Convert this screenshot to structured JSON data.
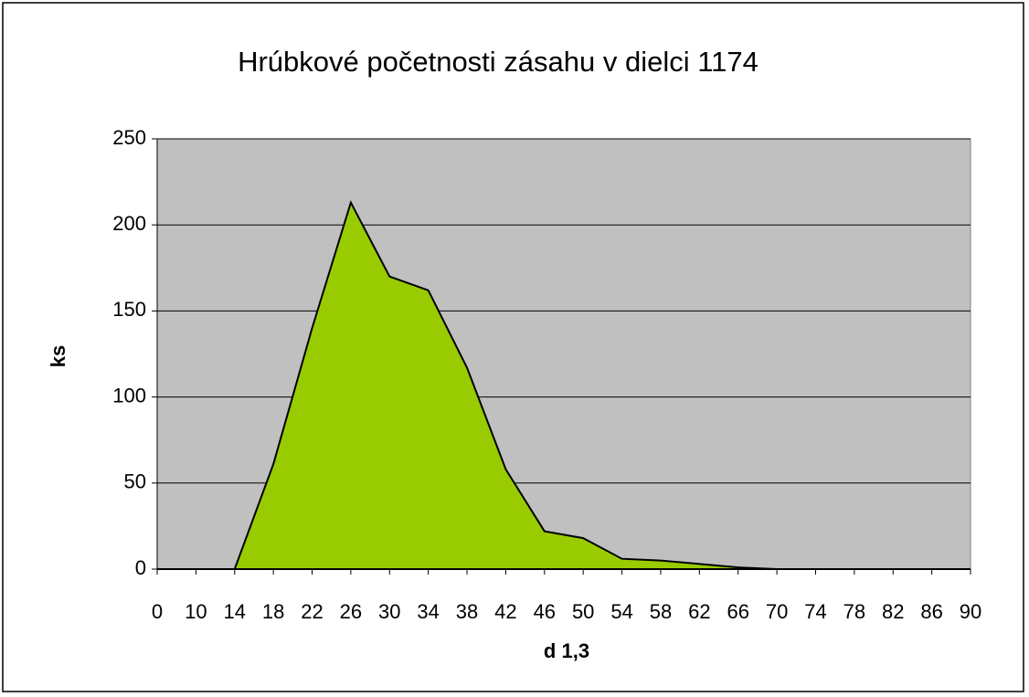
{
  "chart_data": {
    "type": "area",
    "title": "Hrúbkové početnosti zásahu v dielci 1174",
    "x_label": "d 1,3",
    "y_label": "ks",
    "categories": [
      0,
      10,
      14,
      18,
      22,
      26,
      30,
      34,
      38,
      42,
      46,
      50,
      54,
      58,
      62,
      66,
      70,
      74,
      78,
      82,
      86,
      90
    ],
    "values": [
      0,
      0,
      0,
      61,
      140,
      213,
      170,
      162,
      117,
      58,
      22,
      18,
      6,
      5,
      3,
      1,
      0,
      0,
      0,
      0,
      0,
      0
    ],
    "color": "#99cc00",
    "plot_background": "#c0c0c0",
    "ylim": [
      0,
      250
    ],
    "yticks": [
      0,
      50,
      100,
      150,
      200,
      250
    ],
    "grid": true
  }
}
